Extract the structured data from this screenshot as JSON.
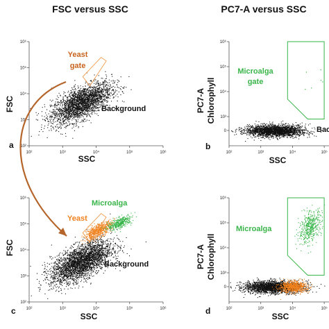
{
  "titles": [
    "FSC versus SSC",
    "PC7-A versus SSC"
  ],
  "colors": {
    "background": "#111111",
    "yeast": "#f0821e",
    "microalga": "#39b54a",
    "yeast_gate": "#f3a45c",
    "microalga_gate": "#39b54a",
    "arrow": "#b5652a"
  },
  "chart_data": [
    {
      "id": "a",
      "panel_label": "a",
      "type": "scatter",
      "xlabel": "SSC",
      "ylabel": "FSC",
      "x_scale": "log",
      "y_scale": "log",
      "xlim": [
        100,
        1000000
      ],
      "ylim": [
        100,
        1000000
      ],
      "xticks": [
        "10²",
        "10³",
        "10⁴",
        "10⁵",
        "10⁶"
      ],
      "yticks": [
        "10²",
        "10³",
        "10⁴",
        "10⁵",
        "10⁶"
      ],
      "annotations": [
        "Yeast",
        "gate",
        "Background"
      ],
      "series": [
        {
          "name": "Background",
          "color": "#111111",
          "count": 2600,
          "center_log": [
            3.55,
            3.65
          ],
          "spread_log": [
            0.45,
            0.3
          ],
          "slope": 0.55
        }
      ],
      "gate": {
        "name": "Yeast gate",
        "color": "#f3a45c",
        "polygon": [
          [
            4000,
            45000
          ],
          [
            14000,
            250000
          ],
          [
            20000,
            180000
          ],
          [
            6500,
            20000
          ]
        ]
      }
    },
    {
      "id": "b",
      "panel_label": "b",
      "type": "scatter",
      "xlabel": "SSC",
      "ylabel": "PC7-A",
      "ylabel2": "Chlorophyll",
      "x_scale": "log",
      "y_scale": "biexponential",
      "xlim": [
        100,
        100000
      ],
      "ylim": [
        -10,
        1000000
      ],
      "xticks": [
        "10²",
        "10³",
        "10⁴",
        "10⁵"
      ],
      "yticks": [
        "0",
        "10³",
        "10⁴",
        "10⁵",
        "10⁶"
      ],
      "annotations": [
        "Microalga",
        "gate",
        "Bac"
      ],
      "series": [
        {
          "name": "Background",
          "color": "#111111",
          "count": 2200,
          "center_log": [
            3.45,
            0
          ],
          "spread_log": [
            0.45,
            0.5
          ],
          "slope": 0
        }
      ],
      "gate": {
        "name": "Microalga gate",
        "color": "#39b54a",
        "polygon": [
          [
            7000,
            1000000
          ],
          [
            7000,
            5000
          ],
          [
            30000,
            300
          ],
          [
            100000,
            300
          ],
          [
            100000,
            1000000
          ]
        ]
      }
    },
    {
      "id": "c",
      "panel_label": "c",
      "type": "scatter",
      "xlabel": "SSC",
      "ylabel": "FSC",
      "x_scale": "log",
      "y_scale": "log",
      "xlim": [
        100,
        1000000
      ],
      "ylim": [
        100,
        1000000
      ],
      "xticks": [
        "10²",
        "10³",
        "10⁴",
        "10⁵",
        "10⁶"
      ],
      "yticks": [
        "10²",
        "10³",
        "10⁴",
        "10⁵",
        "10⁶"
      ],
      "annotations": [
        "Yeast",
        "Microalga",
        "Background"
      ],
      "series": [
        {
          "name": "Background",
          "color": "#111111",
          "count": 3000,
          "center_log": [
            3.55,
            3.55
          ],
          "spread_log": [
            0.45,
            0.32
          ],
          "slope": 0.55
        },
        {
          "name": "Yeast",
          "color": "#f0821e",
          "count": 650,
          "center_log": [
            4.05,
            4.75
          ],
          "spread_log": [
            0.2,
            0.12
          ],
          "slope": 0.6
        },
        {
          "name": "Microalga",
          "color": "#39b54a",
          "count": 380,
          "center_log": [
            4.7,
            5.05
          ],
          "spread_log": [
            0.18,
            0.1
          ],
          "slope": 0.5
        }
      ],
      "gate": {
        "name": "Yeast gate",
        "color": "#f3a45c",
        "polygon": [
          [
            4000,
            45000
          ],
          [
            14000,
            250000
          ],
          [
            20000,
            180000
          ],
          [
            6500,
            20000
          ]
        ]
      }
    },
    {
      "id": "d",
      "panel_label": "d",
      "type": "scatter",
      "xlabel": "SSC",
      "ylabel": "PC7-A",
      "ylabel2": "Chlorophyll",
      "x_scale": "log",
      "y_scale": "biexponential",
      "xlim": [
        100,
        100000
      ],
      "ylim": [
        -10,
        1000000
      ],
      "xticks": [
        "10²",
        "10³",
        "10⁴",
        "10⁵"
      ],
      "yticks": [
        "0",
        "10³",
        "10⁴",
        "10⁵",
        "10⁶"
      ],
      "annotations": [
        "Microalga"
      ],
      "series": [
        {
          "name": "Background",
          "color": "#111111",
          "count": 2400,
          "center_log": [
            3.4,
            0
          ],
          "spread_log": [
            0.45,
            0.5
          ],
          "slope": 0
        },
        {
          "name": "Yeast",
          "color": "#f0821e",
          "count": 700,
          "center_log": [
            4.0,
            0
          ],
          "spread_log": [
            0.22,
            0.45
          ],
          "slope": 0
        },
        {
          "name": "Microalga",
          "color": "#39b54a",
          "count": 450,
          "center_log": [
            4.55,
            4.85
          ],
          "spread_log": [
            0.18,
            0.3
          ],
          "slope": 0.8
        }
      ],
      "gate": {
        "name": "Microalga gate",
        "color": "#39b54a",
        "polygon": [
          [
            7000,
            1000000
          ],
          [
            7000,
            5000
          ],
          [
            30000,
            300
          ],
          [
            100000,
            300
          ],
          [
            100000,
            1000000
          ]
        ]
      }
    }
  ]
}
